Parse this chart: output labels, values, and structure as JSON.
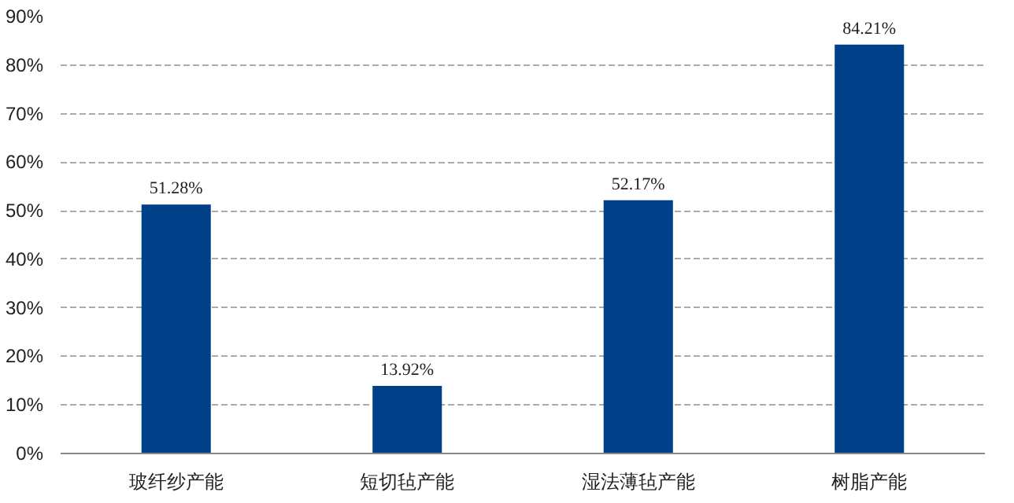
{
  "chart_data": {
    "type": "bar",
    "categories": [
      "玻纤纱产能",
      "短切毡产能",
      "湿法薄毡产能",
      "树脂产能"
    ],
    "values": [
      51.28,
      13.92,
      52.17,
      84.21
    ],
    "value_labels": [
      "51.28%",
      "13.92%",
      "52.17%",
      "84.21%"
    ],
    "color": "#004088",
    "ylim": [
      0,
      90
    ],
    "yticks": [
      {
        "value": 0,
        "label": "0%"
      },
      {
        "value": 10,
        "label": "10%"
      },
      {
        "value": 20,
        "label": "20%"
      },
      {
        "value": 30,
        "label": "30%"
      },
      {
        "value": 40,
        "label": "40%"
      },
      {
        "value": 50,
        "label": "50%"
      },
      {
        "value": 60,
        "label": "60%"
      },
      {
        "value": 70,
        "label": "70%"
      },
      {
        "value": 80,
        "label": "80%"
      },
      {
        "value": 90,
        "label": "90%"
      }
    ],
    "grid": "y"
  }
}
